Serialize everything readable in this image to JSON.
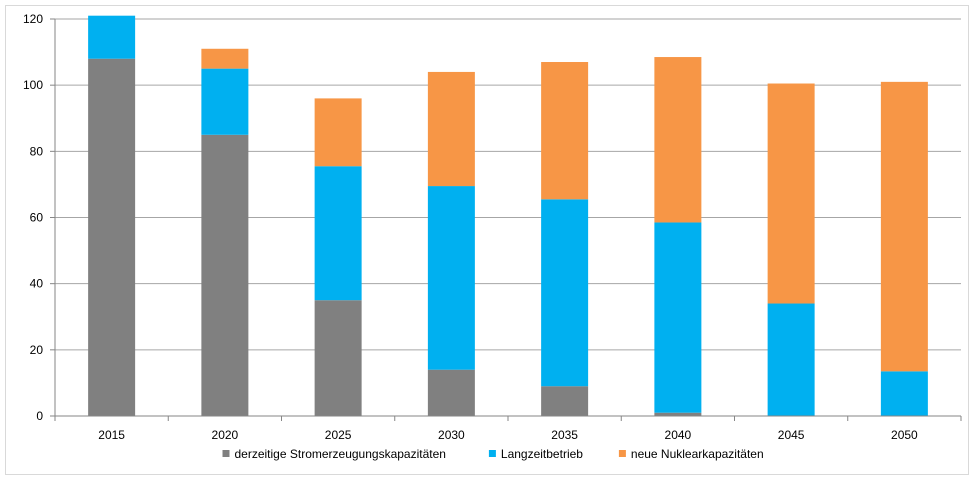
{
  "chart_data": {
    "type": "bar",
    "stacked": true,
    "title": "",
    "xlabel": "",
    "ylabel": "",
    "categories": [
      "2015",
      "2020",
      "2025",
      "2030",
      "2035",
      "2040",
      "2045",
      "2050"
    ],
    "ylim": [
      0,
      120
    ],
    "yticks": [
      0,
      20,
      40,
      60,
      80,
      100,
      120
    ],
    "grid": true,
    "legend_position": "bottom",
    "series": [
      {
        "name": "derzeitige Stromerzeugungskapazitäten",
        "color": "#808080",
        "values": [
          108,
          85,
          35,
          14,
          9,
          1,
          0,
          0
        ]
      },
      {
        "name": "Langzeitbetrieb",
        "color": "#00b0f0",
        "values": [
          13,
          20,
          40.5,
          55.5,
          56.5,
          57.5,
          34,
          13.5
        ]
      },
      {
        "name": "neue Nuklearkapazitäten",
        "color": "#f79646",
        "values": [
          0,
          6,
          20.5,
          34.5,
          41.5,
          50,
          66.5,
          87.5
        ]
      }
    ]
  }
}
